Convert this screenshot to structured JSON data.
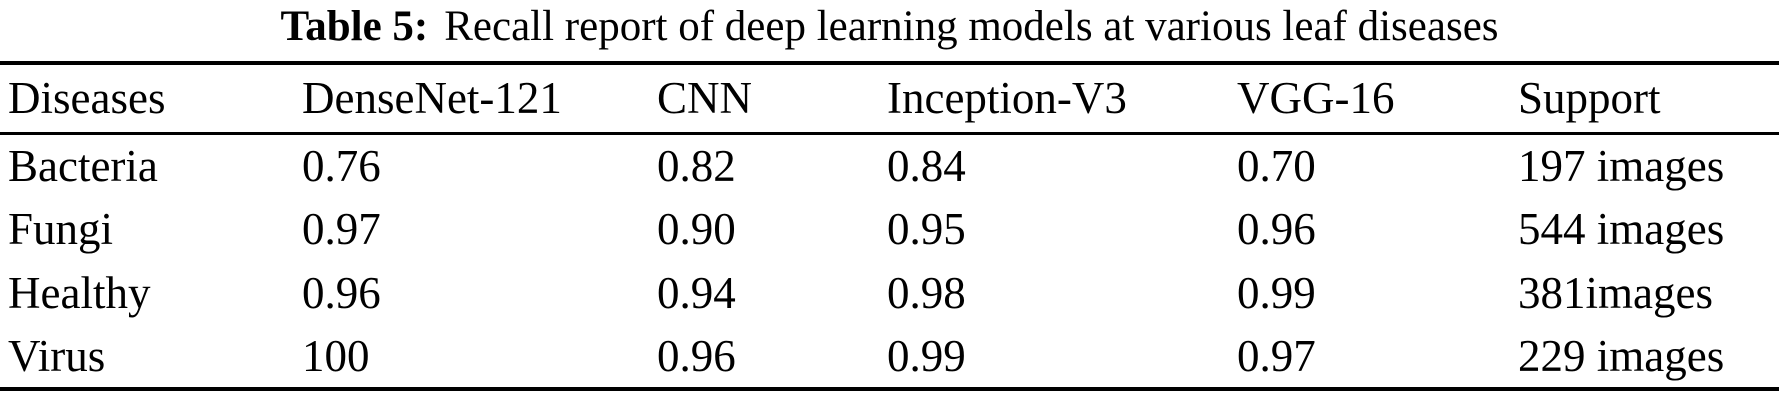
{
  "caption": {
    "label": "Table 5:",
    "text": "Recall report of deep learning models at various leaf diseases"
  },
  "table": {
    "columns": [
      "Diseases",
      "DenseNet-121",
      "CNN",
      "Inception-V3",
      "VGG-16",
      "Support"
    ],
    "rows": [
      [
        "Bacteria",
        "0.76",
        "0.82",
        "0.84",
        "0.70",
        "197 images"
      ],
      [
        "Fungi",
        "0.97",
        "0.90",
        "0.95",
        "0.96",
        "544 images"
      ],
      [
        "Healthy",
        "0.96",
        "0.94",
        "0.98",
        "0.99",
        "381images"
      ],
      [
        "Virus",
        "100",
        "0.96",
        "0.99",
        "0.97",
        "229 images"
      ]
    ]
  },
  "chart_data": {
    "type": "table",
    "title": "Table 5: Recall report of deep learning models at various leaf diseases",
    "columns": [
      "Diseases",
      "DenseNet-121",
      "CNN",
      "Inception-V3",
      "VGG-16",
      "Support"
    ],
    "rows": [
      {
        "disease": "Bacteria",
        "densenet121": 0.76,
        "cnn": 0.82,
        "inception_v3": 0.84,
        "vgg16": 0.7,
        "support": "197 images"
      },
      {
        "disease": "Fungi",
        "densenet121": 0.97,
        "cnn": 0.9,
        "inception_v3": 0.95,
        "vgg16": 0.96,
        "support": "544 images"
      },
      {
        "disease": "Healthy",
        "densenet121": 0.96,
        "cnn": 0.94,
        "inception_v3": 0.98,
        "vgg16": 0.99,
        "support": "381images"
      },
      {
        "disease": "Virus",
        "densenet121": 100,
        "cnn": 0.96,
        "inception_v3": 0.99,
        "vgg16": 0.97,
        "support": "229 images"
      }
    ]
  }
}
